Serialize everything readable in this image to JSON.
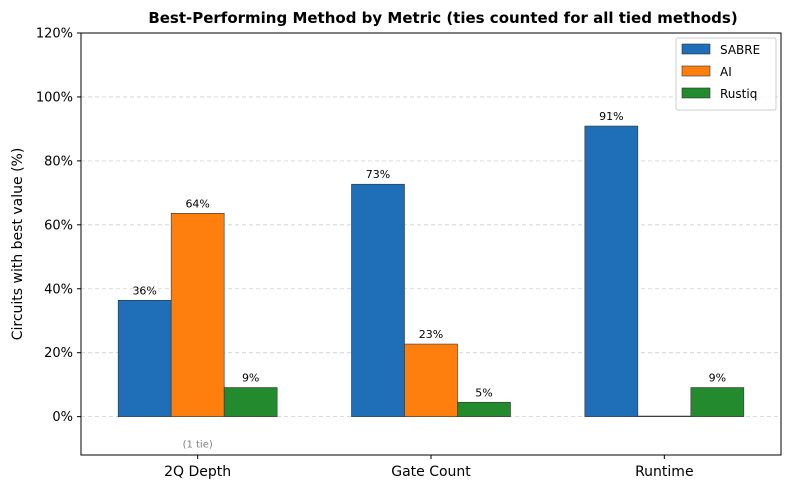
{
  "chart_data": {
    "type": "bar",
    "title": "Best-Performing Method by Metric (ties counted for all tied methods)",
    "xlabel": "",
    "ylabel": "Circuits with best value (%)",
    "categories": [
      "2Q Depth",
      "Gate Count",
      "Runtime"
    ],
    "series": [
      {
        "name": "SABRE",
        "color": "#1f6fb8",
        "values": [
          36.4,
          72.7,
          90.9
        ],
        "labels": [
          "36%",
          "73%",
          "91%"
        ]
      },
      {
        "name": "AI",
        "color": "#ff7f0e",
        "values": [
          63.6,
          22.7,
          0
        ],
        "labels": [
          "64%",
          "23%",
          ""
        ]
      },
      {
        "name": "Rustiq",
        "color": "#238b2e",
        "values": [
          9.1,
          4.5,
          9.1
        ],
        "labels": [
          "9%",
          "5%",
          "9%"
        ]
      }
    ],
    "ylim": [
      -12,
      120
    ],
    "yticks": [
      0,
      20,
      40,
      60,
      80,
      100,
      120
    ],
    "ytick_labels": [
      "0%",
      "20%",
      "40%",
      "60%",
      "80%",
      "100%",
      "120%"
    ],
    "grid": "y-dashed",
    "legend_position": "top-right",
    "annotations": [
      {
        "category": "2Q Depth",
        "text": "(1 tie)"
      }
    ]
  }
}
